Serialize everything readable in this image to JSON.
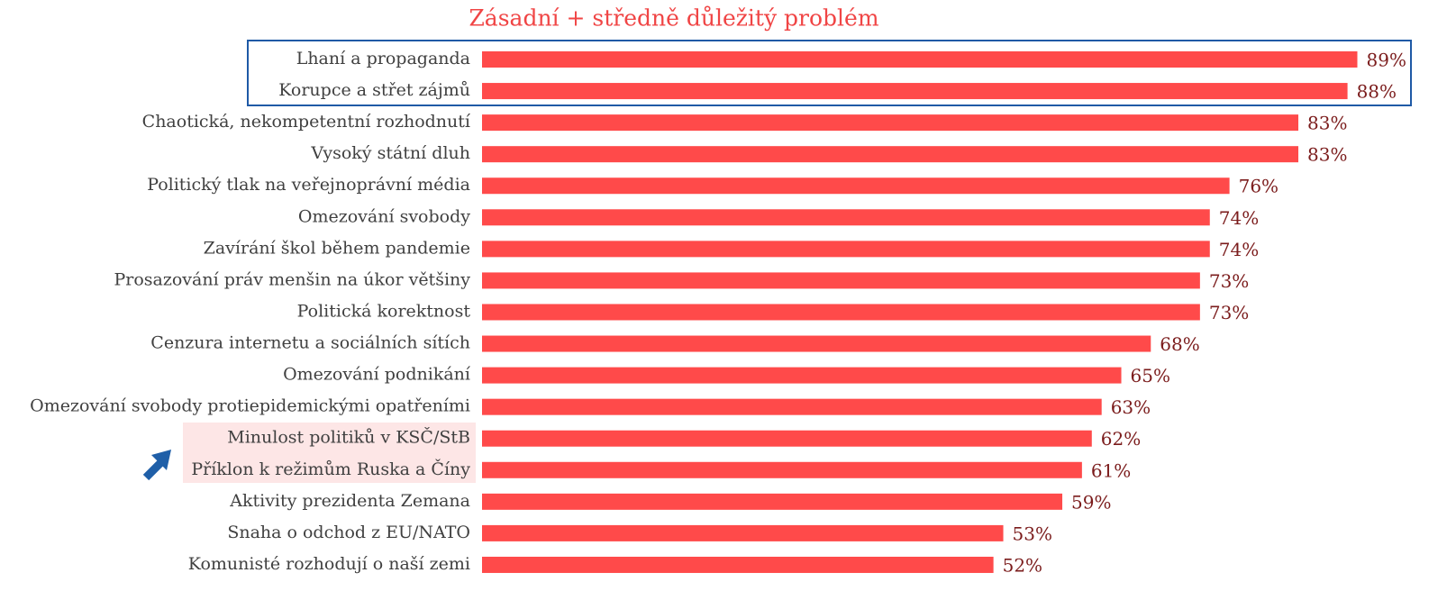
{
  "chart_data": {
    "type": "bar",
    "orientation": "horizontal",
    "title": "Zásadní + středně důležitý problém",
    "categories": [
      "Lhaní a propaganda",
      "Korupce a střet zájmů",
      "Chaotická, nekompetentní rozhodnutí",
      "Vysoký státní dluh",
      "Politický tlak na veřejnoprávní média",
      "Omezování svobody",
      "Zavírání škol během pandemie",
      "Prosazování práv menšin na úkor většiny",
      "Politická korektnost",
      "Cenzura internetu a sociálních sítích",
      "Omezování podnikání",
      "Omezování svobody protiepidemickými opatřeními",
      "Minulost politiků v KSČ/StB",
      "Příklon k režimům Ruska a Číny",
      "Aktivity prezidenta Zemana",
      "Snaha o odchod z EU/NATO",
      "Komunisté rozhodují o naší zemi"
    ],
    "values": [
      89,
      88,
      83,
      83,
      76,
      74,
      74,
      73,
      73,
      68,
      65,
      63,
      62,
      61,
      59,
      53,
      52
    ],
    "value_labels": [
      "89%",
      "88%",
      "83%",
      "83%",
      "76%",
      "74%",
      "74%",
      "73%",
      "73%",
      "68%",
      "65%",
      "63%",
      "62%",
      "61%",
      "59%",
      "53%",
      "52%"
    ],
    "color": "#ff4a4a",
    "xlim": [
      0,
      95
    ]
  }
}
